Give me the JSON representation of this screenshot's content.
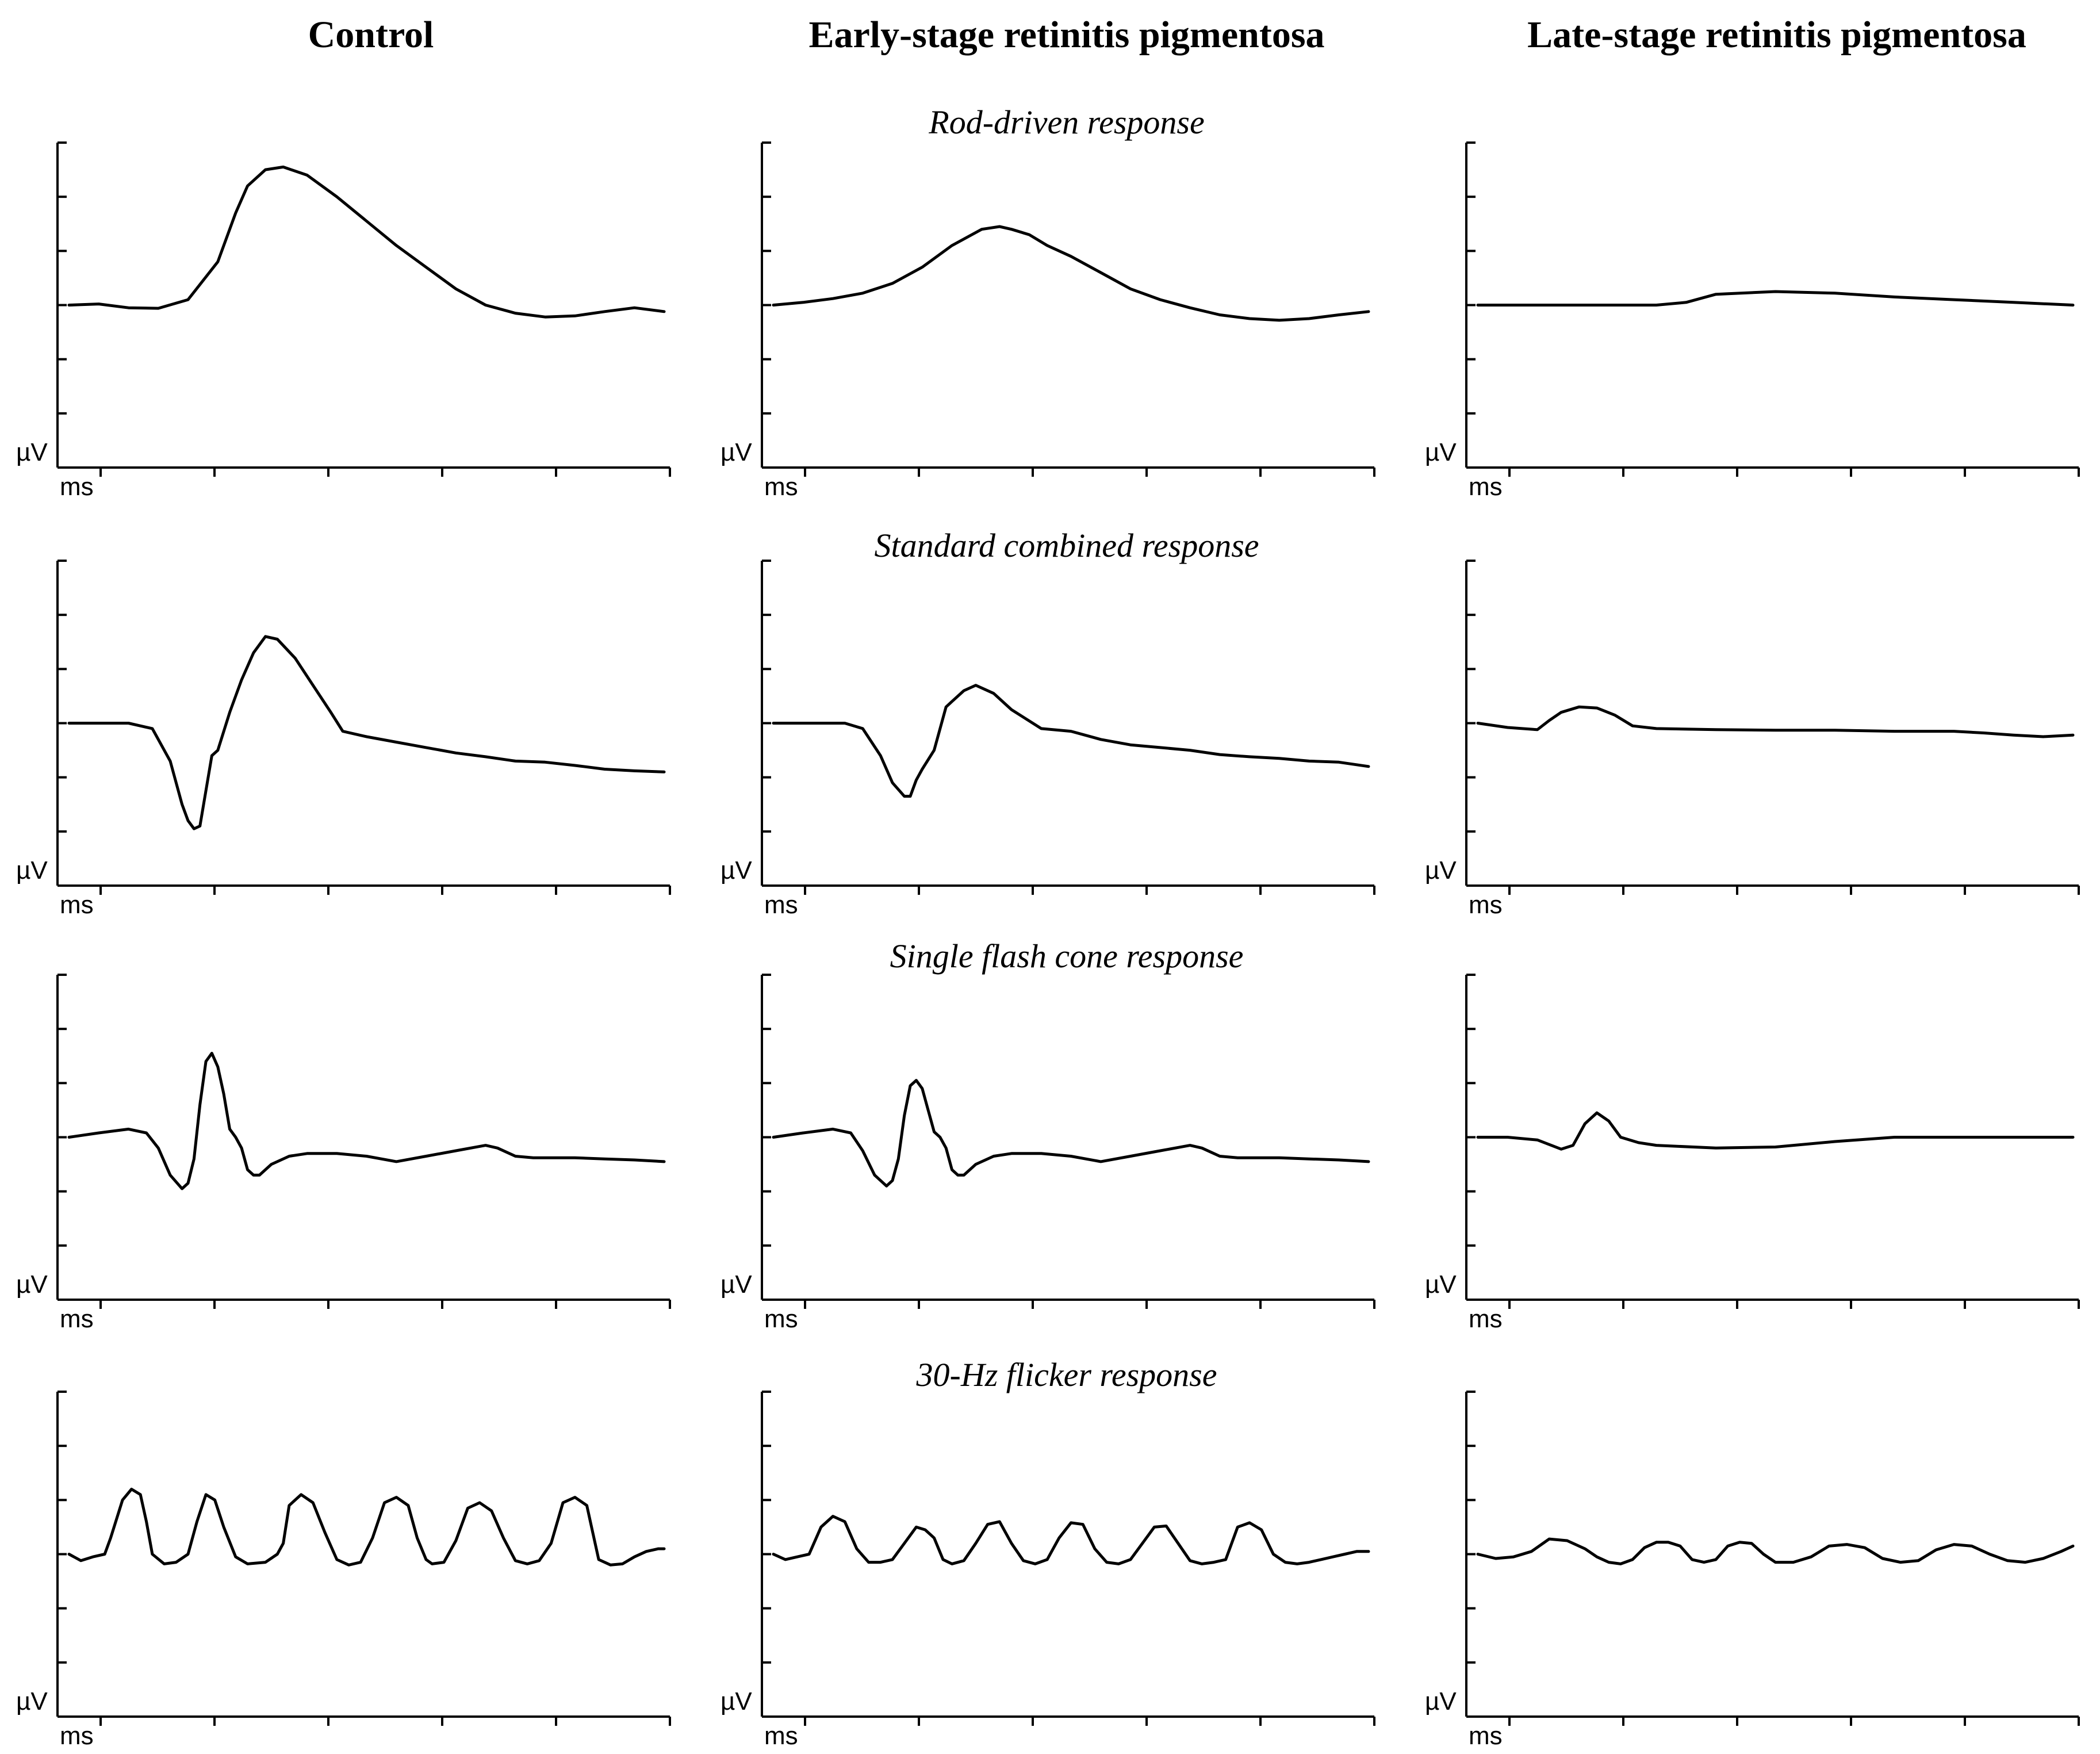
{
  "column_titles": [
    "Control",
    "Early-stage retinitis pigmentosa",
    "Late-stage retinitis pigmentosa"
  ],
  "row_titles": [
    "Rod-driven response",
    "Standard combined response",
    "Single flash cone response",
    "30-Hz flicker response"
  ],
  "colors": {
    "trace": "#000000",
    "axis": "#000000",
    "background": "#ffffff"
  },
  "chart_data": [
    {
      "type": "line",
      "condition": "Control",
      "response": "Rod-driven response",
      "xlabel": "ms",
      "ylabel": "µV",
      "y_ticks": 6,
      "x_ticks": 6,
      "ylim": [
        -3,
        3
      ],
      "xlim": [
        0,
        100
      ],
      "x": [
        0,
        5,
        10,
        15,
        20,
        25,
        28,
        30,
        33,
        36,
        40,
        45,
        50,
        55,
        60,
        65,
        70,
        75,
        80,
        85,
        90,
        95,
        100
      ],
      "y": [
        0,
        0.02,
        -0.05,
        -0.06,
        0.1,
        0.8,
        1.7,
        2.2,
        2.5,
        2.55,
        2.4,
        2.0,
        1.55,
        1.1,
        0.7,
        0.3,
        0.0,
        -0.15,
        -0.22,
        -0.2,
        -0.12,
        -0.05,
        -0.12
      ]
    },
    {
      "type": "line",
      "condition": "Early-stage retinitis pigmentosa",
      "response": "Rod-driven response",
      "xlabel": "ms",
      "ylabel": "µV",
      "y_ticks": 6,
      "x_ticks": 6,
      "ylim": [
        -3,
        3
      ],
      "xlim": [
        0,
        100
      ],
      "x": [
        0,
        5,
        10,
        15,
        20,
        25,
        30,
        35,
        38,
        40,
        43,
        46,
        50,
        55,
        60,
        65,
        70,
        75,
        80,
        85,
        90,
        95,
        100
      ],
      "y": [
        0,
        0.05,
        0.12,
        0.22,
        0.4,
        0.7,
        1.1,
        1.4,
        1.45,
        1.4,
        1.3,
        1.1,
        0.9,
        0.6,
        0.3,
        0.1,
        -0.05,
        -0.18,
        -0.25,
        -0.28,
        -0.25,
        -0.18,
        -0.12
      ]
    },
    {
      "type": "line",
      "condition": "Late-stage retinitis pigmentosa",
      "response": "Rod-driven response",
      "xlabel": "ms",
      "ylabel": "µV",
      "y_ticks": 6,
      "x_ticks": 6,
      "ylim": [
        -3,
        3
      ],
      "xlim": [
        0,
        100
      ],
      "x": [
        0,
        10,
        20,
        30,
        35,
        40,
        50,
        60,
        70,
        80,
        90,
        100
      ],
      "y": [
        0,
        0,
        0,
        0,
        0.05,
        0.2,
        0.25,
        0.22,
        0.15,
        0.1,
        0.05,
        0.0
      ]
    },
    {
      "type": "line",
      "condition": "Control",
      "response": "Standard combined response",
      "xlabel": "ms",
      "ylabel": "µV",
      "y_ticks": 6,
      "x_ticks": 6,
      "ylim": [
        -3,
        3
      ],
      "xlim": [
        0,
        100
      ],
      "x": [
        0,
        5,
        10,
        14,
        17,
        19,
        20,
        21,
        22,
        24,
        25,
        27,
        29,
        31,
        33,
        35,
        38,
        41,
        44,
        46,
        50,
        55,
        60,
        65,
        70,
        75,
        80,
        85,
        90,
        95,
        100
      ],
      "y": [
        0,
        0,
        0,
        -0.1,
        -0.7,
        -1.5,
        -1.8,
        -1.95,
        -1.9,
        -0.6,
        -0.5,
        0.2,
        0.8,
        1.3,
        1.6,
        1.55,
        1.2,
        0.7,
        0.2,
        -0.15,
        -0.25,
        -0.35,
        -0.45,
        -0.55,
        -0.62,
        -0.7,
        -0.72,
        -0.78,
        -0.85,
        -0.88,
        -0.9
      ]
    },
    {
      "type": "line",
      "condition": "Early-stage retinitis pigmentosa",
      "response": "Standard combined response",
      "xlabel": "ms",
      "ylabel": "µV",
      "y_ticks": 6,
      "x_ticks": 6,
      "ylim": [
        -3,
        3
      ],
      "xlim": [
        0,
        100
      ],
      "x": [
        0,
        5,
        10,
        12,
        15,
        18,
        20,
        22,
        23,
        24,
        25,
        27,
        29,
        30,
        32,
        34,
        37,
        40,
        45,
        50,
        55,
        60,
        65,
        70,
        75,
        80,
        85,
        90,
        95,
        100
      ],
      "y": [
        0,
        0,
        0,
        0,
        -0.1,
        -0.6,
        -1.1,
        -1.35,
        -1.35,
        -1.05,
        -0.85,
        -0.5,
        0.3,
        0.4,
        0.6,
        0.7,
        0.55,
        0.25,
        -0.1,
        -0.15,
        -0.3,
        -0.4,
        -0.45,
        -0.5,
        -0.58,
        -0.62,
        -0.65,
        -0.7,
        -0.72,
        -0.8
      ]
    },
    {
      "type": "line",
      "condition": "Late-stage retinitis pigmentosa",
      "response": "Standard combined response",
      "xlabel": "ms",
      "ylabel": "µV",
      "y_ticks": 6,
      "x_ticks": 6,
      "ylim": [
        -3,
        3
      ],
      "xlim": [
        0,
        100
      ],
      "x": [
        0,
        5,
        10,
        12,
        14,
        17,
        20,
        23,
        26,
        30,
        40,
        50,
        60,
        70,
        80,
        85,
        90,
        95,
        100
      ],
      "y": [
        0,
        -0.08,
        -0.12,
        0.05,
        0.2,
        0.3,
        0.28,
        0.15,
        -0.05,
        -0.1,
        -0.12,
        -0.13,
        -0.13,
        -0.15,
        -0.15,
        -0.18,
        -0.22,
        -0.25,
        -0.22
      ]
    },
    {
      "type": "line",
      "condition": "Control",
      "response": "Single flash cone response",
      "xlabel": "ms",
      "ylabel": "µV",
      "y_ticks": 6,
      "x_ticks": 6,
      "ylim": [
        -3,
        3
      ],
      "xlim": [
        0,
        100
      ],
      "x": [
        0,
        5,
        10,
        13,
        15,
        17,
        19,
        20,
        21,
        22,
        23,
        24,
        25,
        26,
        27,
        28,
        29,
        30,
        31,
        32,
        34,
        37,
        40,
        45,
        50,
        55,
        60,
        65,
        70,
        72,
        75,
        78,
        80,
        85,
        90,
        95,
        100
      ],
      "y": [
        0,
        0.08,
        0.15,
        0.08,
        -0.2,
        -0.7,
        -0.95,
        -0.85,
        -0.4,
        0.6,
        1.4,
        1.55,
        1.3,
        0.8,
        0.15,
        0.0,
        -0.2,
        -0.6,
        -0.7,
        -0.7,
        -0.5,
        -0.35,
        -0.3,
        -0.3,
        -0.35,
        -0.45,
        -0.35,
        -0.25,
        -0.15,
        -0.2,
        -0.35,
        -0.38,
        -0.38,
        -0.38,
        -0.4,
        -0.42,
        -0.45
      ]
    },
    {
      "type": "line",
      "condition": "Early-stage retinitis pigmentosa",
      "response": "Single flash cone response",
      "xlabel": "ms",
      "ylabel": "µV",
      "y_ticks": 6,
      "x_ticks": 6,
      "ylim": [
        -3,
        3
      ],
      "xlim": [
        0,
        100
      ],
      "x": [
        0,
        5,
        10,
        13,
        15,
        17,
        19,
        20,
        21,
        22,
        23,
        24,
        25,
        26,
        27,
        28,
        29,
        30,
        31,
        32,
        34,
        37,
        40,
        45,
        50,
        55,
        60,
        65,
        70,
        72,
        75,
        78,
        80,
        85,
        90,
        95,
        100
      ],
      "y": [
        0,
        0.08,
        0.15,
        0.08,
        -0.25,
        -0.7,
        -0.9,
        -0.8,
        -0.4,
        0.4,
        0.95,
        1.05,
        0.9,
        0.5,
        0.1,
        0.0,
        -0.2,
        -0.6,
        -0.7,
        -0.7,
        -0.5,
        -0.35,
        -0.3,
        -0.3,
        -0.35,
        -0.45,
        -0.35,
        -0.25,
        -0.15,
        -0.2,
        -0.35,
        -0.38,
        -0.38,
        -0.38,
        -0.4,
        -0.42,
        -0.45
      ]
    },
    {
      "type": "line",
      "condition": "Late-stage retinitis pigmentosa",
      "response": "Single flash cone response",
      "xlabel": "ms",
      "ylabel": "µV",
      "y_ticks": 6,
      "x_ticks": 6,
      "ylim": [
        -3,
        3
      ],
      "xlim": [
        0,
        100
      ],
      "x": [
        0,
        5,
        10,
        14,
        16,
        18,
        20,
        22,
        24,
        27,
        30,
        40,
        50,
        60,
        70,
        80,
        90,
        100
      ],
      "y": [
        0,
        0,
        -0.05,
        -0.22,
        -0.15,
        0.25,
        0.45,
        0.3,
        0.0,
        -0.1,
        -0.15,
        -0.2,
        -0.18,
        -0.08,
        0.0,
        0.0,
        0.0,
        0.0
      ]
    },
    {
      "type": "line",
      "condition": "Control",
      "response": "30-Hz flicker response",
      "xlabel": "ms",
      "ylabel": "µV",
      "y_ticks": 6,
      "x_ticks": 6,
      "ylim": [
        -3,
        3
      ],
      "xlim": [
        0,
        100
      ],
      "x": [
        0,
        2,
        4,
        6,
        7,
        9,
        10.5,
        12,
        13,
        14,
        16,
        18,
        20,
        21.5,
        23,
        24.5,
        26,
        28,
        30,
        33,
        35,
        36,
        37,
        39,
        41,
        43,
        45,
        47,
        49,
        51,
        53,
        55,
        57,
        58.5,
        60,
        61,
        63,
        65,
        67,
        69,
        71,
        73,
        75,
        77,
        79,
        81,
        83,
        85,
        87,
        88,
        89,
        91,
        93,
        95,
        97,
        99,
        100
      ],
      "y": [
        0,
        -0.12,
        -0.05,
        0.0,
        0.3,
        1.0,
        1.2,
        1.1,
        0.6,
        0.0,
        -0.18,
        -0.15,
        0.0,
        0.6,
        1.1,
        1.0,
        0.5,
        -0.05,
        -0.18,
        -0.15,
        0.0,
        0.2,
        0.9,
        1.1,
        0.95,
        0.4,
        -0.1,
        -0.2,
        -0.15,
        0.3,
        0.95,
        1.05,
        0.9,
        0.3,
        -0.1,
        -0.18,
        -0.15,
        0.25,
        0.85,
        0.95,
        0.8,
        0.3,
        -0.12,
        -0.18,
        -0.12,
        0.2,
        0.95,
        1.05,
        0.9,
        0.4,
        -0.1,
        -0.2,
        -0.18,
        -0.05,
        0.05,
        0.1,
        0.1
      ]
    },
    {
      "type": "line",
      "condition": "Early-stage retinitis pigmentosa",
      "response": "30-Hz flicker response",
      "xlabel": "ms",
      "ylabel": "µV",
      "y_ticks": 6,
      "x_ticks": 6,
      "ylim": [
        -3,
        3
      ],
      "xlim": [
        0,
        100
      ],
      "x": [
        0,
        2,
        4,
        6,
        8,
        10,
        12,
        14,
        16,
        18,
        20,
        22,
        24,
        25.5,
        27,
        28.5,
        30,
        32,
        34,
        36,
        38,
        40,
        42,
        44,
        46,
        48,
        50,
        52,
        54,
        56,
        58,
        60,
        62,
        64,
        66,
        68,
        70,
        72,
        74,
        76,
        78,
        80,
        82,
        84,
        86,
        88,
        90,
        92,
        94,
        96,
        98,
        100
      ],
      "y": [
        0,
        -0.1,
        -0.05,
        0.0,
        0.5,
        0.7,
        0.6,
        0.1,
        -0.15,
        -0.15,
        -0.1,
        0.2,
        0.5,
        0.45,
        0.3,
        -0.1,
        -0.18,
        -0.12,
        0.2,
        0.55,
        0.6,
        0.2,
        -0.12,
        -0.18,
        -0.1,
        0.3,
        0.58,
        0.55,
        0.1,
        -0.15,
        -0.18,
        -0.1,
        0.2,
        0.5,
        0.52,
        0.2,
        -0.12,
        -0.18,
        -0.15,
        -0.1,
        0.5,
        0.58,
        0.45,
        0.0,
        -0.15,
        -0.18,
        -0.15,
        -0.1,
        -0.05,
        0.0,
        0.05,
        0.05
      ]
    },
    {
      "type": "line",
      "condition": "Late-stage retinitis pigmentosa",
      "response": "30-Hz flicker response",
      "xlabel": "ms",
      "ylabel": "µV",
      "y_ticks": 6,
      "x_ticks": 6,
      "ylim": [
        -3,
        3
      ],
      "xlim": [
        0,
        100
      ],
      "x": [
        0,
        3,
        6,
        9,
        12,
        15,
        18,
        20,
        22,
        24,
        26,
        28,
        30,
        32,
        34,
        36,
        38,
        40,
        42,
        44,
        46,
        48,
        50,
        53,
        56,
        59,
        62,
        65,
        68,
        71,
        74,
        77,
        80,
        83,
        86,
        89,
        92,
        95,
        98,
        100
      ],
      "y": [
        0,
        -0.08,
        -0.05,
        0.05,
        0.28,
        0.25,
        0.1,
        -0.05,
        -0.15,
        -0.18,
        -0.1,
        0.12,
        0.22,
        0.22,
        0.15,
        -0.1,
        -0.15,
        -0.1,
        0.15,
        0.22,
        0.2,
        0.0,
        -0.15,
        -0.15,
        -0.05,
        0.15,
        0.18,
        0.12,
        -0.08,
        -0.15,
        -0.12,
        0.08,
        0.18,
        0.15,
        0.0,
        -0.12,
        -0.15,
        -0.08,
        0.05,
        0.15
      ]
    }
  ]
}
